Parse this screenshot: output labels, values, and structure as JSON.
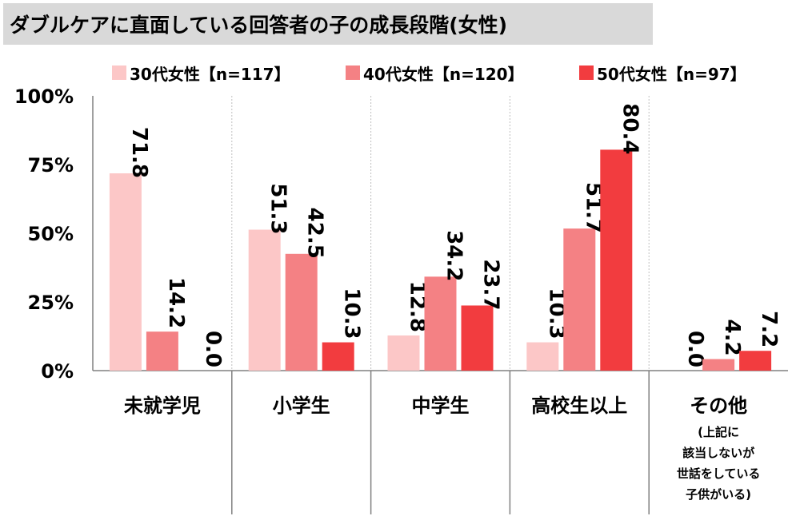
{
  "chart_data": {
    "type": "bar",
    "title": "ダブルケアに直面している回答者の子の成長段階(女性)",
    "categories": [
      "未就学児",
      "小学生",
      "中学生",
      "高校生以上",
      "その他"
    ],
    "category_notes": [
      "",
      "",
      "",
      "",
      "(上記に\n該当しないが\n世話をしている\n子供がいる)"
    ],
    "series": [
      {
        "name": "30代女性【n=117】",
        "color": "#fcc7c7",
        "values": [
          71.8,
          51.3,
          12.8,
          10.3,
          0.0
        ],
        "labels": [
          "71.8",
          "51.3",
          "12.8",
          "10.3",
          "0.0"
        ]
      },
      {
        "name": "40代女性【n=120】",
        "color": "#f48184",
        "values": [
          14.2,
          42.5,
          34.2,
          51.7,
          4.2
        ],
        "labels": [
          "14.2",
          "42.5",
          "34.2",
          "51.7",
          "4.2"
        ]
      },
      {
        "name": "50代女性【n=97】",
        "color": "#f23c3f",
        "values": [
          0.0,
          10.3,
          23.7,
          80.4,
          7.2
        ],
        "labels": [
          "0.0",
          "10.3",
          "23.7",
          "80.4",
          "7.2"
        ]
      }
    ],
    "yticks": [
      "0%",
      "25%",
      "50%",
      "75%",
      "100%"
    ],
    "ylim": [
      0,
      100
    ],
    "legend": "top",
    "grid": "vertical dashed separators"
  }
}
